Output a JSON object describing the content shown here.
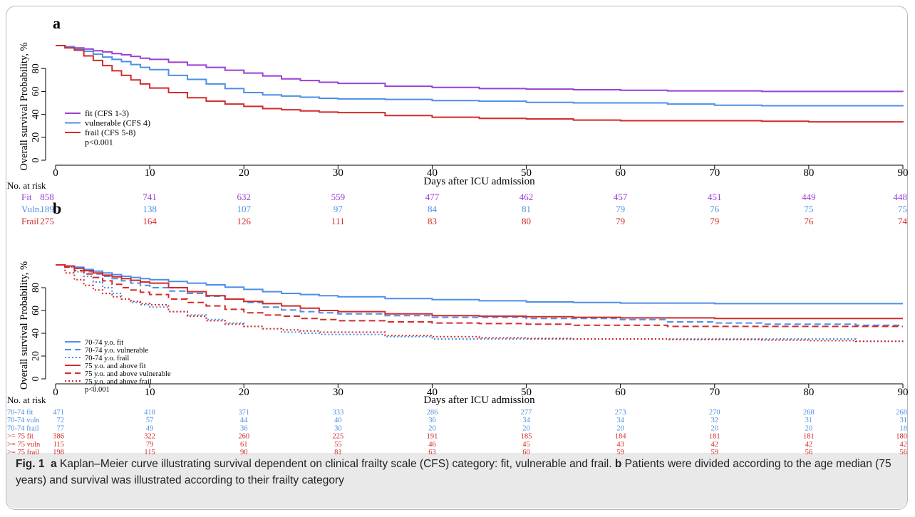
{
  "panels": [
    {
      "letter": "a",
      "ylabel": "Overall survival Probability, %",
      "xlabel": "Days after ICU admission",
      "yticks": [
        0,
        20,
        40,
        60,
        80
      ],
      "xticks": [
        0,
        10,
        20,
        30,
        40,
        50,
        60,
        70,
        80,
        90
      ],
      "pvalue": "p<0.001",
      "risk_header": "No. at risk"
    },
    {
      "letter": "b",
      "ylabel": "Overall survival Probability, %",
      "xlabel": "Days after ICU admission",
      "yticks": [
        0,
        20,
        40,
        60,
        80
      ],
      "xticks": [
        0,
        10,
        20,
        30,
        40,
        50,
        60,
        70,
        80,
        90
      ],
      "pvalue": "p<0.001",
      "risk_header": "No. at risk"
    }
  ],
  "chart_data": [
    {
      "type": "line",
      "step": true,
      "xlim": [
        0,
        90
      ],
      "ylim": [
        0,
        100
      ],
      "series": [
        {
          "name": "fit (CFS 1-3)",
          "color": "#9a3fd6",
          "style": "solid",
          "x": [
            0,
            1,
            2,
            3,
            4,
            5,
            6,
            7,
            8,
            9,
            10,
            12,
            14,
            16,
            18,
            20,
            22,
            24,
            26,
            28,
            30,
            35,
            40,
            45,
            50,
            55,
            60,
            65,
            70,
            75,
            80,
            85,
            90
          ],
          "y": [
            100,
            99,
            98,
            97,
            95.5,
            94.5,
            93,
            92,
            90.5,
            89,
            88,
            85.5,
            83,
            81,
            78.5,
            76,
            73.5,
            71,
            69.5,
            68,
            67,
            64.5,
            63.5,
            62.5,
            62,
            61.5,
            61,
            60.5,
            60.5,
            60,
            60,
            60,
            59.8
          ]
        },
        {
          "name": "vulnerable (CFS 4)",
          "color": "#4d8fe6",
          "style": "solid",
          "x": [
            0,
            1,
            2,
            3,
            4,
            5,
            6,
            7,
            8,
            9,
            10,
            12,
            14,
            16,
            18,
            20,
            22,
            24,
            26,
            28,
            30,
            35,
            40,
            45,
            50,
            55,
            60,
            65,
            70,
            75,
            80,
            85,
            90
          ],
          "y": [
            100,
            99,
            97,
            95,
            92.5,
            90,
            88,
            86,
            83.5,
            81,
            79,
            74,
            70.5,
            66.5,
            62.5,
            59,
            57,
            56,
            55,
            54,
            53.5,
            53,
            52,
            51.5,
            50.5,
            50,
            50,
            49,
            48,
            47.5,
            47.5,
            47.5,
            47
          ]
        },
        {
          "name": "frail (CFS 5-8)",
          "color": "#d42a2a",
          "style": "solid",
          "x": [
            0,
            1,
            2,
            3,
            4,
            5,
            6,
            7,
            8,
            9,
            10,
            12,
            14,
            16,
            18,
            20,
            22,
            24,
            26,
            28,
            30,
            35,
            40,
            45,
            50,
            55,
            60,
            65,
            70,
            75,
            80,
            85,
            90
          ],
          "y": [
            100,
            98,
            96,
            91,
            87,
            82.5,
            78,
            74,
            70,
            66.5,
            63,
            59,
            54.5,
            51.5,
            49,
            47,
            45,
            44,
            43,
            42,
            41.5,
            39,
            37.5,
            36.5,
            36,
            35,
            34.5,
            34.5,
            34.5,
            34,
            33.5,
            33.5,
            33
          ]
        }
      ],
      "risk_table": {
        "times": [
          0,
          10,
          20,
          30,
          40,
          50,
          60,
          70,
          80,
          90
        ],
        "rows": [
          {
            "label": "Fit",
            "color": "#9a3fd6",
            "values": [
              858,
              741,
              632,
              559,
              477,
              462,
              457,
              451,
              449,
              448
            ]
          },
          {
            "label": "Vuln.",
            "color": "#4d8fe6",
            "values": [
              189,
              138,
              107,
              97,
              84,
              81,
              79,
              76,
              75,
              75
            ]
          },
          {
            "label": "Frail",
            "color": "#d42a2a",
            "values": [
              275,
              164,
              126,
              111,
              83,
              80,
              79,
              79,
              76,
              74
            ]
          }
        ]
      }
    },
    {
      "type": "line",
      "step": true,
      "xlim": [
        0,
        90
      ],
      "ylim": [
        0,
        100
      ],
      "series": [
        {
          "name": "70-74 y.o. fit",
          "color": "#4d8fe6",
          "style": "solid",
          "x": [
            0,
            1,
            2,
            3,
            4,
            5,
            6,
            7,
            8,
            9,
            10,
            12,
            14,
            16,
            18,
            20,
            22,
            24,
            26,
            28,
            30,
            35,
            40,
            45,
            50,
            55,
            60,
            65,
            70,
            75,
            80,
            85,
            90
          ],
          "y": [
            100,
            99,
            98,
            96,
            94.5,
            93,
            91.5,
            90,
            89,
            88,
            87,
            85.5,
            84,
            82.5,
            80.5,
            78.5,
            76.5,
            75,
            74,
            73,
            72,
            70.5,
            69.5,
            68.5,
            67.5,
            67,
            66.5,
            66.5,
            66,
            66,
            66,
            66,
            66
          ]
        },
        {
          "name": "70-74 y.o. vulnerable",
          "color": "#4d8fe6",
          "style": "dash",
          "x": [
            0,
            1,
            2,
            3,
            4,
            5,
            6,
            7,
            8,
            9,
            10,
            12,
            14,
            16,
            18,
            20,
            22,
            24,
            26,
            28,
            30,
            35,
            40,
            45,
            50,
            55,
            60,
            65,
            70,
            75,
            80,
            85,
            90
          ],
          "y": [
            100,
            99,
            97,
            94,
            92,
            90,
            88,
            86,
            84,
            82,
            80,
            77,
            75,
            72.5,
            70,
            67,
            63,
            60.5,
            59,
            58,
            57,
            55.5,
            54,
            54,
            53,
            53,
            52,
            50,
            49,
            48,
            48,
            47,
            47
          ]
        },
        {
          "name": "70-74 y.o. frail",
          "color": "#4d8fe6",
          "style": "dot",
          "x": [
            0,
            1,
            2,
            3,
            4,
            5,
            6,
            7,
            8,
            9,
            10,
            12,
            14,
            16,
            18,
            20,
            22,
            24,
            26,
            28,
            30,
            35,
            40,
            45,
            50,
            55,
            60,
            65,
            70,
            75,
            80,
            85,
            90
          ],
          "y": [
            100,
            98,
            94,
            90,
            85,
            80,
            75,
            70,
            67,
            65,
            63,
            59,
            56,
            52,
            49,
            46,
            44,
            41,
            40,
            39,
            39,
            37,
            35,
            35,
            35,
            35,
            35,
            35,
            35,
            35,
            35,
            33,
            32
          ]
        },
        {
          "name": "75 y.o. and above fit",
          "color": "#d42a2a",
          "style": "solid",
          "x": [
            0,
            1,
            2,
            3,
            4,
            5,
            6,
            7,
            8,
            9,
            10,
            12,
            14,
            16,
            18,
            20,
            22,
            24,
            26,
            28,
            30,
            35,
            40,
            45,
            50,
            55,
            60,
            65,
            70,
            75,
            80,
            85,
            90
          ],
          "y": [
            100,
            99,
            97,
            95,
            93,
            91,
            89.5,
            88,
            86.5,
            85,
            84,
            80,
            76.5,
            73,
            70,
            68,
            66,
            64,
            62,
            60,
            59,
            57,
            55.5,
            55,
            54.5,
            54,
            53.5,
            53.5,
            53,
            53,
            53,
            53,
            53
          ]
        },
        {
          "name": "75 y.o. and above vulnerable",
          "color": "#d42a2a",
          "style": "dash",
          "x": [
            0,
            1,
            2,
            3,
            4,
            5,
            6,
            7,
            8,
            9,
            10,
            12,
            14,
            16,
            18,
            20,
            22,
            24,
            26,
            28,
            30,
            35,
            40,
            45,
            50,
            55,
            60,
            65,
            70,
            75,
            80,
            85,
            90
          ],
          "y": [
            100,
            98,
            95,
            92,
            89,
            86,
            83,
            80,
            78,
            76,
            74,
            70,
            67,
            64,
            61,
            58,
            56,
            55,
            53,
            52,
            51,
            50,
            49,
            48.5,
            48,
            47,
            47,
            46,
            46,
            46,
            46,
            46,
            46
          ]
        },
        {
          "name": "75 y.o. and above frail",
          "color": "#d42a2a",
          "style": "dot",
          "x": [
            0,
            1,
            2,
            3,
            4,
            5,
            6,
            7,
            8,
            9,
            10,
            12,
            14,
            16,
            18,
            20,
            22,
            24,
            26,
            28,
            30,
            35,
            40,
            45,
            50,
            55,
            60,
            65,
            70,
            75,
            80,
            85,
            90
          ],
          "y": [
            100,
            93,
            87,
            82,
            78,
            75,
            72,
            70,
            68,
            66,
            65,
            59,
            55,
            51,
            48,
            46,
            44,
            43,
            42,
            41,
            41,
            38,
            37,
            36,
            35.5,
            35,
            35,
            34.5,
            34.5,
            34,
            33.5,
            33,
            33
          ]
        }
      ],
      "risk_table": {
        "times": [
          0,
          10,
          20,
          30,
          40,
          50,
          60,
          70,
          80,
          90
        ],
        "rows": [
          {
            "label": "70-74 fit",
            "color": "#4d8fe6",
            "values": [
              471,
              418,
              371,
              333,
              286,
              277,
              273,
              270,
              268,
              268
            ]
          },
          {
            "label": "70-74 vuln",
            "color": "#4d8fe6",
            "values": [
              72,
              57,
              44,
              40,
              36,
              34,
              34,
              32,
              31,
              31
            ]
          },
          {
            "label": "70-74 frail",
            "color": "#4d8fe6",
            "values": [
              77,
              49,
              36,
              30,
              20,
              20,
              20,
              20,
              20,
              18
            ]
          },
          {
            "label": ">= 75 fit",
            "color": "#d42a2a",
            "values": [
              386,
              322,
              260,
              225,
              191,
              185,
              184,
              181,
              181,
              180
            ]
          },
          {
            "label": ">= 75 vuln",
            "color": "#d42a2a",
            "values": [
              115,
              79,
              61,
              55,
              46,
              45,
              43,
              42,
              42,
              42
            ]
          },
          {
            "label": ">= 75 frail",
            "color": "#d42a2a",
            "values": [
              198,
              115,
              90,
              81,
              63,
              60,
              59,
              59,
              56,
              56
            ]
          }
        ]
      }
    }
  ],
  "caption": {
    "fig_label": "Fig. 1",
    "a_label": "a",
    "a_text": " Kaplan–Meier curve illustrating survival dependent on clinical frailty scale (CFS) category: fit, vulnerable and frail.",
    "b_label": "b",
    "b_text": " Patients were divided according to the age median (75 years) and survival was illustrated according to their frailty category"
  }
}
